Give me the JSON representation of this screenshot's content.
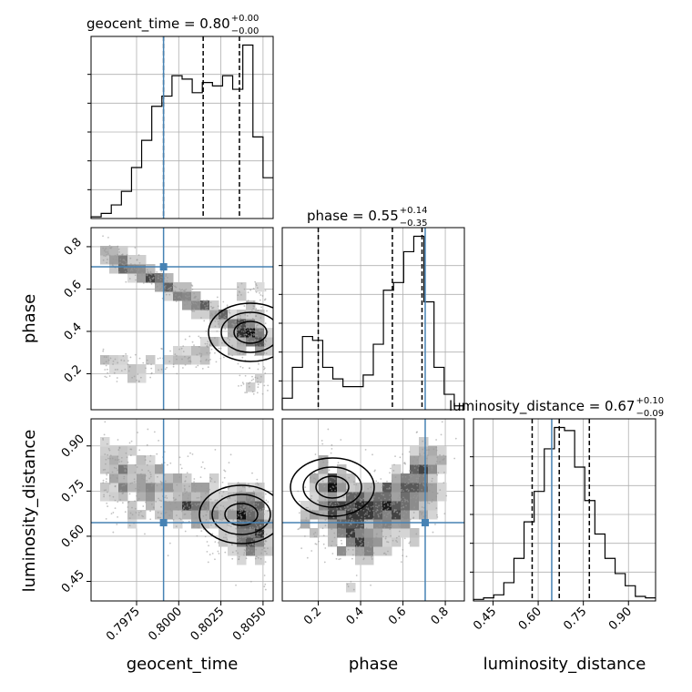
{
  "chart_data": {
    "type": "corner",
    "parameters": [
      "geocent_time",
      "phase",
      "luminosity_distance"
    ],
    "titles": [
      {
        "param": "geocent_time",
        "lead": "geocent_time = ",
        "median": "0.80",
        "plus": "+0.00",
        "minus": "−0.00"
      },
      {
        "param": "phase",
        "lead": "phase = ",
        "median": "0.55",
        "plus": "+0.14",
        "minus": "−0.35"
      },
      {
        "param": "luminosity_distance",
        "lead": "luminosity_distance = ",
        "median": "0.67",
        "plus": "+0.10",
        "minus": "−0.09"
      }
    ],
    "truths": {
      "geocent_time": 0.7991,
      "phase": 0.705,
      "luminosity_distance": 0.645
    },
    "ranges": {
      "geocent_time": [
        0.7948,
        0.8056
      ],
      "phase": [
        0.03,
        0.89
      ],
      "luminosity_distance": [
        0.385,
        0.99
      ]
    },
    "ticks": {
      "geocent_time": {
        "values": [
          0.7975,
          0.8,
          0.8025,
          0.805
        ],
        "labels": [
          "0.7975",
          "0.8000",
          "0.8025",
          "0.8050"
        ]
      },
      "phase": {
        "values": [
          0.2,
          0.4,
          0.6,
          0.8
        ],
        "labels": [
          "0.2",
          "0.4",
          "0.6",
          "0.8"
        ]
      },
      "luminosity_distance": {
        "values": [
          0.45,
          0.6,
          0.75,
          0.9
        ],
        "labels": [
          "0.45",
          "0.60",
          "0.75",
          "0.90"
        ]
      }
    },
    "quantiles": {
      "geocent_time": [
        0.7991,
        0.80145,
        0.8036
      ],
      "phase": [
        0.2,
        0.55,
        0.69
      ],
      "luminosity_distance": [
        0.58,
        0.67,
        0.77
      ]
    },
    "histograms": {
      "geocent_time": {
        "counts": [
          0.5,
          1.5,
          4,
          8,
          15,
          23,
          33,
          36,
          42,
          41,
          37,
          40,
          39,
          42,
          38,
          51,
          24,
          12
        ]
      },
      "phase": {
        "counts": [
          3,
          11,
          19,
          18,
          11,
          8,
          6,
          6,
          9,
          17,
          31,
          33,
          41,
          45,
          28,
          11,
          4,
          1
        ]
      },
      "luminosity_distance": {
        "counts": [
          0.5,
          1,
          2,
          6,
          14,
          26,
          36,
          50,
          57,
          56,
          44,
          33,
          22,
          14,
          9,
          5,
          1.5,
          1
        ]
      }
    },
    "hist_y_ticks": 6,
    "grid": true,
    "truth_color": "#4682b4",
    "line_color": "#000000",
    "point_color": "#9a9a9a"
  }
}
